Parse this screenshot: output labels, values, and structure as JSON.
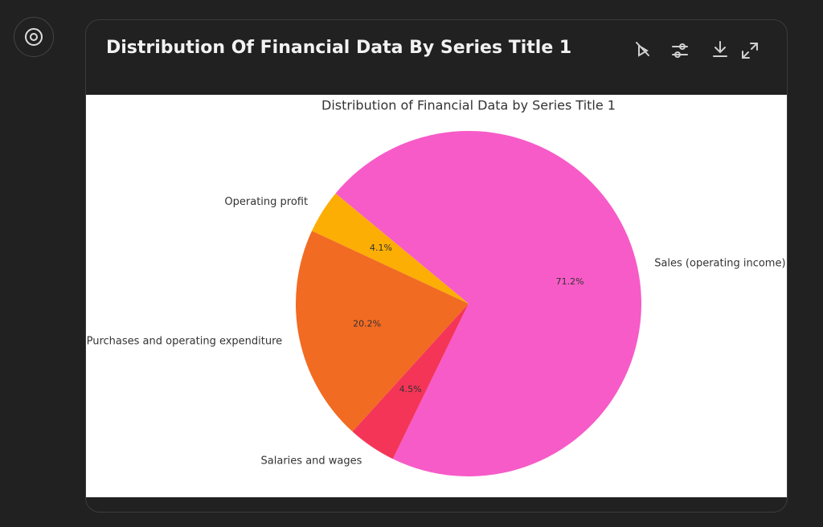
{
  "header": {
    "title": "Distribution Of Financial Data By Series Title 1"
  },
  "chart_data": {
    "type": "pie",
    "title": "Distribution of Financial Data by Series Title 1",
    "categories": [
      "Sales (operating income)",
      "Operating profit",
      "Purchases and operating expenditure",
      "Salaries and wages"
    ],
    "values": [
      71.2,
      4.1,
      20.2,
      4.5
    ],
    "value_labels": [
      "71.2%",
      "4.1%",
      "20.2%",
      "4.5%"
    ],
    "colors": [
      "#f75bc8",
      "#fcae05",
      "#f26b22",
      "#f43557"
    ]
  }
}
